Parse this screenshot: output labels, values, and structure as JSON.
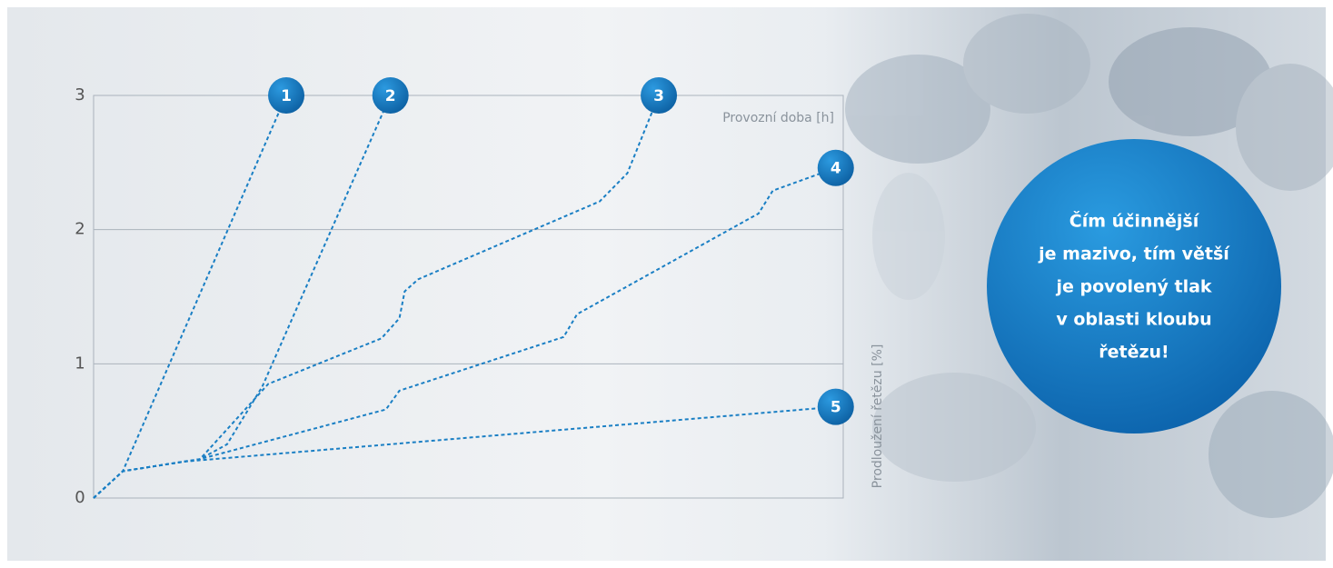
{
  "chart_data": {
    "type": "line",
    "x_label": "Provozní doba [h]",
    "y_label": "Prodloužení řetězu [%]",
    "ylim": [
      0,
      3
    ],
    "yticks": [
      0,
      1,
      2,
      3
    ],
    "xlim": [
      0,
      100
    ],
    "grid": true,
    "line_style": "dashed",
    "annotation": [
      "Čím účinnější",
      "je mazivo, tím větší",
      "je povolený tlak",
      "v oblasti kloubu",
      "řetězu!"
    ],
    "series": [
      {
        "name": "1",
        "color": "#1a7fc4",
        "x": [
          0,
          3.9,
          25.7
        ],
        "values": [
          0,
          0.2,
          3
        ]
      },
      {
        "name": "2",
        "color": "#1a7fc4",
        "x": [
          0,
          3.9,
          14.2,
          17.8,
          22.5,
          39.6
        ],
        "values": [
          0,
          0.2,
          0.29,
          0.4,
          0.83,
          3
        ]
      },
      {
        "name": "3",
        "color": "#1a7fc4",
        "x": [
          0,
          3.9,
          14.2,
          23.3,
          38.4,
          40.8,
          41.5,
          43.3,
          67.5,
          71.2,
          75.4
        ],
        "values": [
          0,
          0.2,
          0.29,
          0.85,
          1.19,
          1.34,
          1.54,
          1.63,
          2.21,
          2.42,
          3
        ]
      },
      {
        "name": "4",
        "color": "#1a7fc4",
        "x": [
          0,
          3.9,
          14.2,
          39,
          40.8,
          62.7,
          64.5,
          88.7,
          90.6,
          99
        ],
        "values": [
          0,
          0.2,
          0.29,
          0.66,
          0.8,
          1.2,
          1.37,
          2.12,
          2.29,
          2.46
        ]
      },
      {
        "name": "5",
        "color": "#1a7fc4",
        "x": [
          0,
          3.9,
          11.8,
          99
        ],
        "values": [
          0,
          0.2,
          0.27,
          0.68
        ]
      }
    ]
  }
}
